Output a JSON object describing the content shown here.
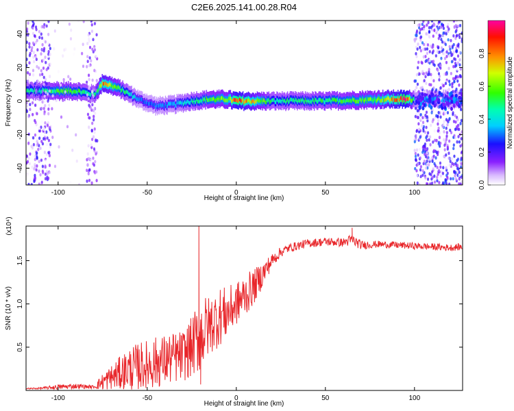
{
  "title": "C2E6.2025.141.00.28.R04",
  "chart_data": [
    {
      "type": "heatmap",
      "xlabel": "Height of straight line (km)",
      "ylabel": "Frequency (Hz)",
      "xlim": [
        -118,
        127
      ],
      "ylim": [
        -50,
        48
      ],
      "xticks": [
        -100,
        -50,
        0,
        50,
        100
      ],
      "yticks": [
        40,
        20,
        0,
        -20,
        -40
      ],
      "colorbar": {
        "label": "Normalized spectral amplitude",
        "range": [
          0.0,
          1.0
        ],
        "ticks": [
          0.0,
          0.2,
          0.4,
          0.6,
          0.8
        ],
        "tick_labels": [
          "0.0",
          "0.2",
          "0.4",
          "0.6",
          "0.8"
        ],
        "colors": [
          "#ffffff",
          "#7a00ff",
          "#0000ff",
          "#00ffff",
          "#00ff00",
          "#ffff00",
          "#ff8000",
          "#ff0000",
          "#ff00a0"
        ]
      },
      "ridge": {
        "x": [
          -112,
          -100,
          -90,
          -80,
          -75,
          -65,
          -55,
          -45,
          -35,
          -25,
          -15,
          -5,
          0,
          20,
          50,
          80,
          95,
          100,
          127
        ],
        "freq": [
          6,
          6,
          6,
          4,
          11,
          7,
          1,
          -3,
          -2,
          0,
          1,
          1,
          0,
          0,
          0,
          1,
          1,
          1,
          1
        ],
        "amplitude": [
          0.45,
          0.55,
          0.5,
          0.45,
          0.75,
          0.5,
          0.3,
          0.3,
          0.35,
          0.45,
          0.55,
          0.6,
          0.9,
          0.45,
          0.5,
          0.6,
          0.95,
          0.35,
          0.3
        ]
      }
    },
    {
      "type": "line",
      "xlabel": "Height of straight line (km)",
      "ylabel": "SNR (10 * v/v)",
      "multiplier": "(x10⁴)",
      "xlim": [
        -118,
        127
      ],
      "ylim": [
        0,
        19000
      ],
      "xticks": [
        -100,
        -50,
        0,
        50,
        100
      ],
      "yticks": [
        5000,
        10000,
        15000
      ],
      "ytick_labels": [
        "0.5",
        "1.0",
        "1.5"
      ],
      "series": [
        {
          "color": "#e8262a",
          "x": [
            -118,
            -110,
            -100,
            -90,
            -80,
            -75,
            -70,
            -60,
            -50,
            -40,
            -30,
            -25,
            -20,
            -15,
            -10,
            -5,
            0,
            5,
            10,
            15,
            20,
            25,
            30,
            40,
            50,
            60,
            65,
            70,
            80,
            90,
            100,
            110,
            120,
            127
          ],
          "y": [
            200,
            250,
            400,
            500,
            400,
            1000,
            1500,
            2500,
            3000,
            3500,
            4000,
            5000,
            6500,
            7500,
            8500,
            9000,
            10000,
            11000,
            12000,
            13500,
            15000,
            16000,
            16500,
            17000,
            17200,
            17100,
            17400,
            16800,
            16900,
            16800,
            16700,
            16600,
            16500,
            16600
          ],
          "noise": [
            100,
            100,
            300,
            300,
            200,
            1000,
            1500,
            2500,
            3000,
            3000,
            3000,
            3500,
            4500,
            3500,
            3500,
            3000,
            2500,
            2500,
            2000,
            1500,
            800,
            600,
            500,
            500,
            500,
            500,
            700,
            500,
            400,
            400,
            400,
            400,
            400,
            400
          ]
        }
      ],
      "spikes": [
        {
          "x": -21,
          "y": 19000
        },
        {
          "x": -20,
          "y": 700
        },
        {
          "x": 65,
          "y": 18800
        }
      ]
    }
  ]
}
